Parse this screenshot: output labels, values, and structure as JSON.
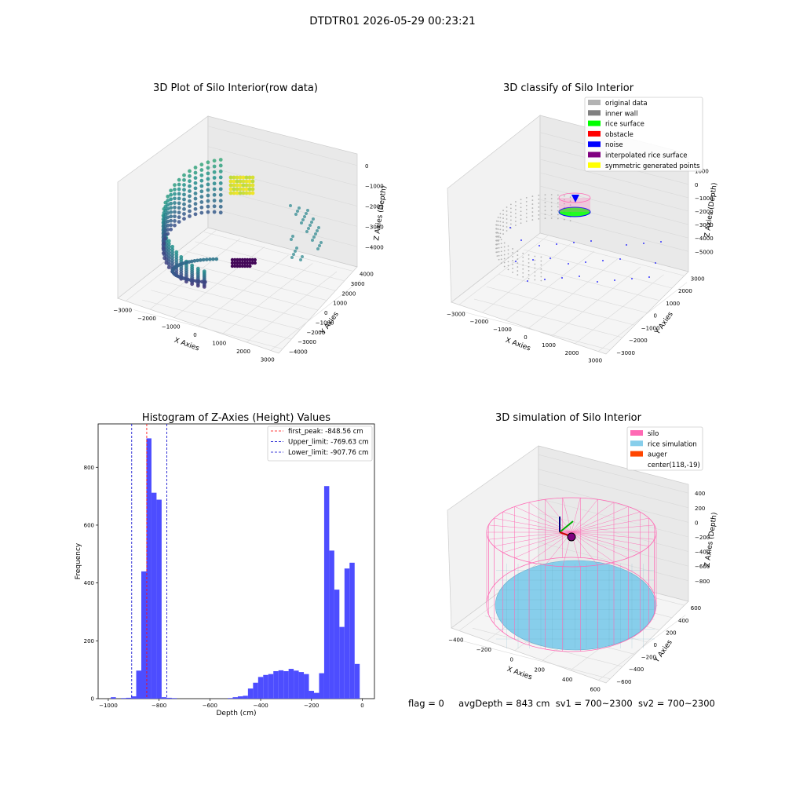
{
  "suptitle": "DTDTR01 2026-05-29 00:23:21",
  "status": {
    "flag": "flag = 0",
    "avg_depth": "avgDepth = 843 cm",
    "sv1": "sv1 = 700~2300",
    "sv2": "sv2 = 700~2300"
  },
  "chart_data": [
    {
      "type": "scatter",
      "title": "3D Plot of Silo Interior(row data)",
      "xlabel": "X Axies",
      "ylabel": "Y Axies",
      "zlabel": "Z Axies (Depth)",
      "x_ticks": [
        "−3000",
        "−2000",
        "−1000",
        "0",
        "1000",
        "2000",
        "3000"
      ],
      "y_ticks": [
        "−4000",
        "−3000",
        "−2000",
        "−1000",
        "0",
        "1000",
        "2000",
        "3000",
        "4000"
      ],
      "z_ticks": [
        "0",
        "−1000",
        "−2000",
        "−3000",
        "−4000"
      ],
      "colormap": "viridis"
    },
    {
      "type": "scatter",
      "title": "3D classify of Silo Interior",
      "xlabel": "X Axies",
      "ylabel": "Y Axies",
      "zlabel": "Z Axies (Depth)",
      "x_ticks": [
        "−3000",
        "−2000",
        "−1000",
        "0",
        "1000",
        "2000",
        "3000"
      ],
      "y_ticks": [
        "−3000",
        "−2000",
        "−1000",
        "0",
        "1000",
        "2000",
        "3000"
      ],
      "z_ticks": [
        "1000",
        "0",
        "−1000",
        "−2000",
        "−3000",
        "−4000",
        "−5000"
      ],
      "legend": [
        {
          "label": "original data",
          "color": "#b3b3b3"
        },
        {
          "label": "inner wall",
          "color": "#808080"
        },
        {
          "label": "rice surface",
          "color": "#00ff00"
        },
        {
          "label": "obstacle",
          "color": "#ff0000"
        },
        {
          "label": "noise",
          "color": "#0000ff"
        },
        {
          "label": "interpolated rice surface",
          "color": "#800080"
        },
        {
          "label": "symmetric generated points",
          "color": "#ffff00"
        }
      ]
    },
    {
      "type": "bar",
      "title": "Histogram of Z-Axies (Height) Values",
      "xlabel": "Depth (cm)",
      "ylabel": "Frequency",
      "xlim": [
        -1000,
        0
      ],
      "ylim": [
        0,
        950
      ],
      "x_ticks": [
        "−1000",
        "−800",
        "−600",
        "−400",
        "−200",
        "0"
      ],
      "y_ticks": [
        "0",
        "200",
        "400",
        "600",
        "800"
      ],
      "bar_color": "#4d4dff",
      "bins": [
        {
          "x0": -990,
          "x1": -970,
          "count": 5
        },
        {
          "x0": -950,
          "x1": -930,
          "count": 2
        },
        {
          "x0": -930,
          "x1": -910,
          "count": 3
        },
        {
          "x0": -910,
          "x1": -890,
          "count": 8
        },
        {
          "x0": -890,
          "x1": -870,
          "count": 97
        },
        {
          "x0": -870,
          "x1": -850,
          "count": 440
        },
        {
          "x0": -850,
          "x1": -830,
          "count": 900
        },
        {
          "x0": -830,
          "x1": -810,
          "count": 712
        },
        {
          "x0": -810,
          "x1": -790,
          "count": 688
        },
        {
          "x0": -790,
          "x1": -770,
          "count": 5
        },
        {
          "x0": -770,
          "x1": -750,
          "count": 3
        },
        {
          "x0": -750,
          "x1": -730,
          "count": 2
        },
        {
          "x0": -530,
          "x1": -510,
          "count": 2
        },
        {
          "x0": -510,
          "x1": -490,
          "count": 5
        },
        {
          "x0": -490,
          "x1": -470,
          "count": 8
        },
        {
          "x0": -470,
          "x1": -450,
          "count": 10
        },
        {
          "x0": -450,
          "x1": -430,
          "count": 35
        },
        {
          "x0": -430,
          "x1": -410,
          "count": 55
        },
        {
          "x0": -410,
          "x1": -390,
          "count": 75
        },
        {
          "x0": -390,
          "x1": -370,
          "count": 82
        },
        {
          "x0": -370,
          "x1": -350,
          "count": 85
        },
        {
          "x0": -350,
          "x1": -330,
          "count": 95
        },
        {
          "x0": -330,
          "x1": -310,
          "count": 98
        },
        {
          "x0": -310,
          "x1": -290,
          "count": 95
        },
        {
          "x0": -290,
          "x1": -270,
          "count": 103
        },
        {
          "x0": -270,
          "x1": -250,
          "count": 97
        },
        {
          "x0": -250,
          "x1": -230,
          "count": 92
        },
        {
          "x0": -230,
          "x1": -210,
          "count": 85
        },
        {
          "x0": -210,
          "x1": -190,
          "count": 27
        },
        {
          "x0": -190,
          "x1": -170,
          "count": 20
        },
        {
          "x0": -170,
          "x1": -150,
          "count": 88
        },
        {
          "x0": -150,
          "x1": -130,
          "count": 735
        },
        {
          "x0": -130,
          "x1": -110,
          "count": 512
        },
        {
          "x0": -110,
          "x1": -90,
          "count": 377
        },
        {
          "x0": -90,
          "x1": -70,
          "count": 248
        },
        {
          "x0": -70,
          "x1": -50,
          "count": 450
        },
        {
          "x0": -50,
          "x1": -30,
          "count": 470
        },
        {
          "x0": -30,
          "x1": -10,
          "count": 120
        }
      ],
      "vlines": [
        {
          "value": -848.56,
          "color": "#ff0000",
          "label": "first_peak: -848.56 cm"
        },
        {
          "value": -769.63,
          "color": "#0000cc",
          "label": "Upper_limit: -769.63 cm"
        },
        {
          "value": -907.76,
          "color": "#0000cc",
          "label": "Lower_limit: -907.76 cm"
        }
      ],
      "legend_position": "top-right"
    },
    {
      "type": "scatter",
      "title": "3D simulation of Silo Interior",
      "xlabel": "X Axies",
      "ylabel": "Y Axies",
      "zlabel": "Z Axies (Depth)",
      "x_ticks": [
        "−400",
        "−200",
        "0",
        "200",
        "400",
        "600"
      ],
      "y_ticks": [
        "−600",
        "−400",
        "−200",
        "0",
        "200",
        "400",
        "600"
      ],
      "z_ticks": [
        "400",
        "200",
        "0",
        "−200",
        "−400",
        "−600",
        "−800"
      ],
      "legend": [
        {
          "label": "silo",
          "color": "#ff69b4"
        },
        {
          "label": "rice simulation",
          "color": "#87ceeb"
        },
        {
          "label": "auger",
          "color": "#ff4500"
        },
        {
          "label": "center(118,-19)",
          "color": ""
        }
      ]
    }
  ]
}
